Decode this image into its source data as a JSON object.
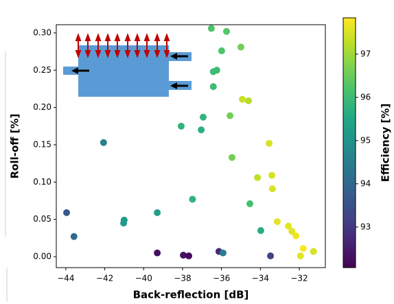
{
  "chart_data": {
    "type": "scatter",
    "xlabel": "Back-reflection [dB]",
    "ylabel": "Roll-off [%]",
    "xlim": [
      -44.49,
      -30.66
    ],
    "ylim": [
      -0.0147,
      0.311
    ],
    "xticks": [
      {
        "value": -44,
        "label": "−44"
      },
      {
        "value": -42,
        "label": "−42"
      },
      {
        "value": -40,
        "label": "−40"
      },
      {
        "value": -38,
        "label": "−38"
      },
      {
        "value": -36,
        "label": "−36"
      },
      {
        "value": -34,
        "label": "−34"
      },
      {
        "value": -32,
        "label": "−32"
      }
    ],
    "yticks": [
      {
        "value": 0,
        "label": "0.00"
      },
      {
        "value": 0.05,
        "label": "0.05"
      },
      {
        "value": 0.1,
        "label": "0.10"
      },
      {
        "value": 0.15,
        "label": "0.15"
      },
      {
        "value": 0.2,
        "label": "0.20"
      },
      {
        "value": 0.25,
        "label": "0.25"
      },
      {
        "value": 0.3,
        "label": "0.30"
      }
    ],
    "colormap": "viridis",
    "clim": [
      92.06,
      97.84
    ],
    "colorbar_label": "Efficiency [%]",
    "colorbar_ticks": [
      93,
      94,
      95,
      96,
      97
    ],
    "x": [
      -36.52,
      -35.74,
      -35.0,
      -35.99,
      -36.24,
      -36.42,
      -36.42,
      -34.93,
      -34.61,
      -36.94,
      -35.56,
      -38.07,
      -37.04,
      -42.06,
      -33.55,
      -35.46,
      -33.41,
      -34.15,
      -33.38,
      -37.49,
      -34.54,
      -43.96,
      -39.3,
      -41.0,
      -41.03,
      -33.13,
      -32.56,
      -32.38,
      -33.98,
      -32.17,
      -43.58,
      -31.8,
      -31.27,
      -31.94,
      -39.3,
      -37.96,
      -37.68,
      -36.13,
      -35.92,
      -33.48
    ],
    "values": [
      0.306,
      0.302,
      0.281,
      0.276,
      0.25,
      0.248,
      0.228,
      0.211,
      0.209,
      0.187,
      0.189,
      0.175,
      0.17,
      0.153,
      0.152,
      0.133,
      0.109,
      0.106,
      0.091,
      0.077,
      0.071,
      0.059,
      0.059,
      0.049,
      0.045,
      0.047,
      0.041,
      0.034,
      0.035,
      0.028,
      0.027,
      0.011,
      0.007,
      0.001,
      0.005,
      0.002,
      0.001,
      0.007,
      0.005,
      0.001
    ],
    "color_values": [
      96.2,
      96.3,
      96.6,
      96.2,
      96.0,
      96.0,
      96.0,
      97.4,
      97.2,
      95.8,
      96.6,
      95.8,
      95.7,
      94.6,
      97.5,
      96.6,
      97.5,
      97.3,
      97.5,
      95.8,
      96.1,
      93.7,
      95.3,
      95.2,
      95.2,
      97.6,
      97.6,
      97.6,
      95.6,
      97.7,
      94.0,
      97.8,
      97.5,
      97.6,
      92.3,
      92.3,
      92.2,
      92.7,
      94.5,
      93.2
    ]
  }
}
